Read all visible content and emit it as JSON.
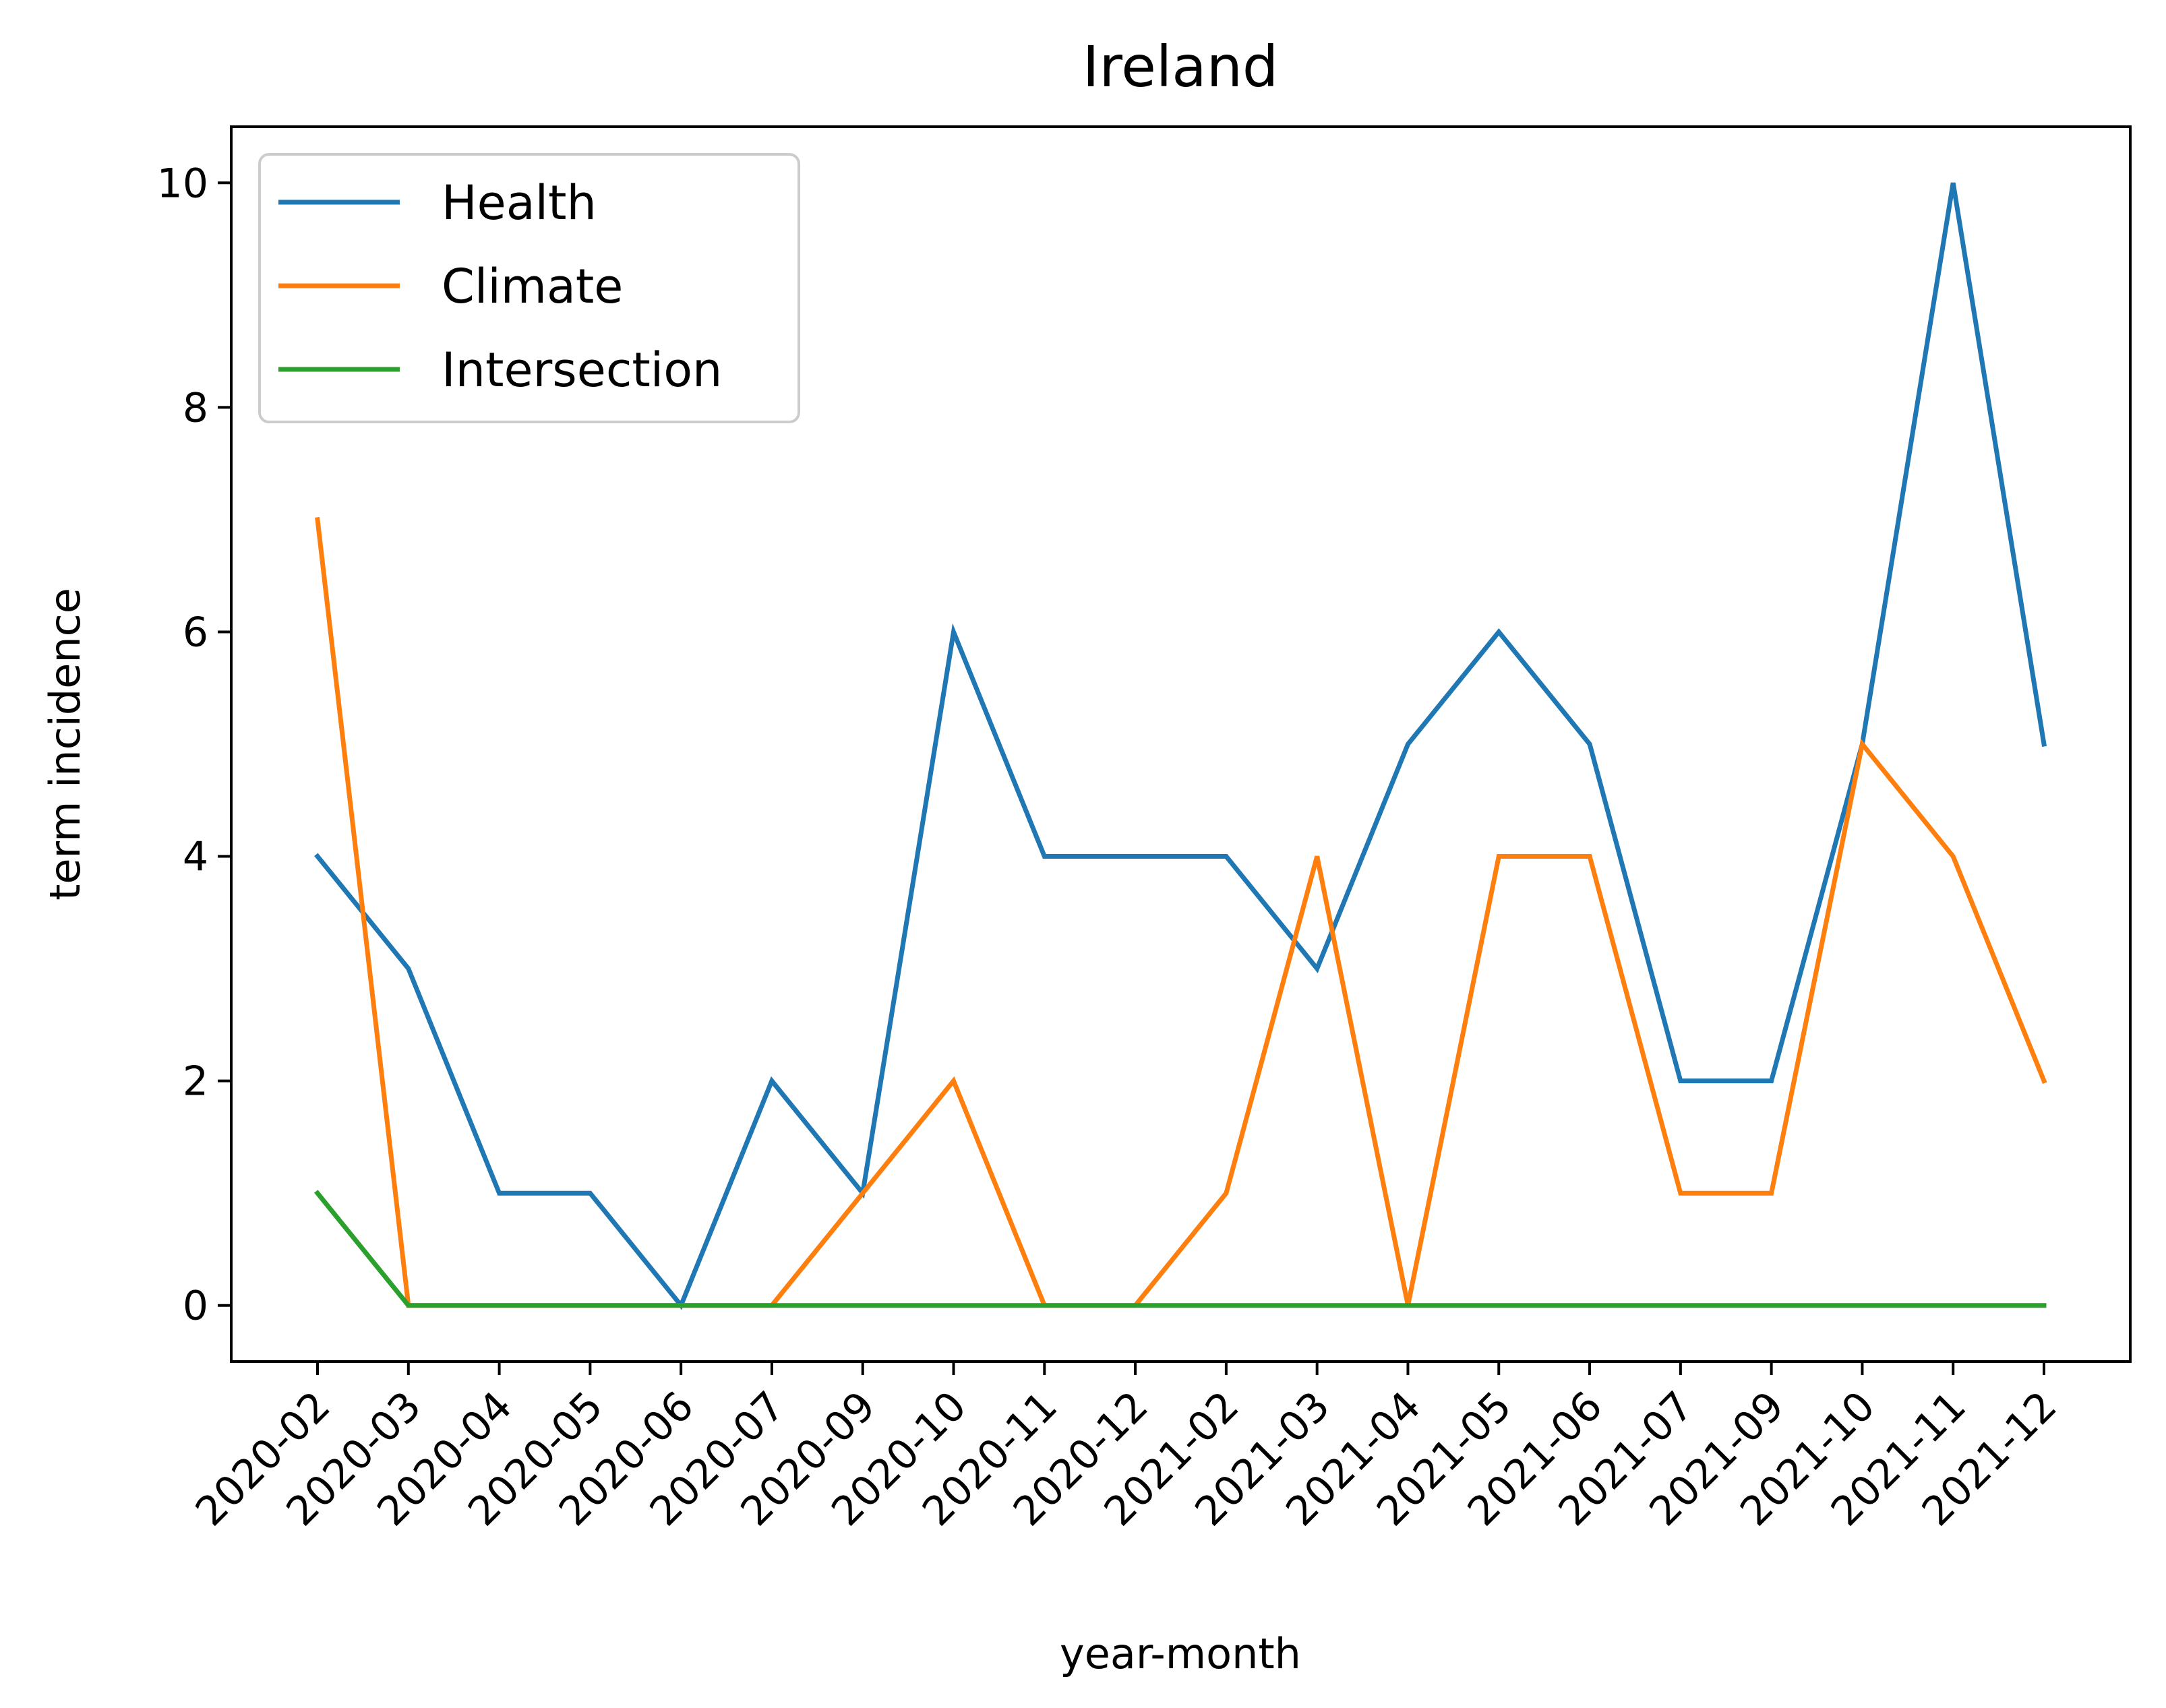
{
  "chart_data": {
    "type": "line",
    "title": "Ireland",
    "xlabel": "year-month",
    "ylabel": "term incidence",
    "categories": [
      "2020-02",
      "2020-03",
      "2020-04",
      "2020-05",
      "2020-06",
      "2020-07",
      "2020-09",
      "2020-10",
      "2020-11",
      "2020-12",
      "2021-02",
      "2021-03",
      "2021-04",
      "2021-05",
      "2021-06",
      "2021-07",
      "2021-09",
      "2021-10",
      "2021-11",
      "2021-12"
    ],
    "yticks": [
      "0",
      "2",
      "4",
      "6",
      "8",
      "10"
    ],
    "ylim": [
      -0.5,
      10.5
    ],
    "grid": false,
    "legend_position": "top-left",
    "series": [
      {
        "name": "Health",
        "color": "#1f77b4",
        "values": [
          4,
          3,
          1,
          1,
          0,
          2,
          1,
          6,
          4,
          4,
          4,
          3,
          5,
          6,
          5,
          2,
          2,
          5,
          10,
          5
        ]
      },
      {
        "name": "Climate",
        "color": "#ff7f0e",
        "values": [
          7,
          0,
          0,
          0,
          0,
          0,
          1,
          2,
          0,
          0,
          1,
          4,
          0,
          4,
          4,
          1,
          1,
          5,
          4,
          2
        ]
      },
      {
        "name": "Intersection",
        "color": "#2ca02c",
        "values": [
          1,
          0,
          0,
          0,
          0,
          0,
          0,
          0,
          0,
          0,
          0,
          0,
          0,
          0,
          0,
          0,
          0,
          0,
          0,
          0
        ]
      }
    ]
  }
}
